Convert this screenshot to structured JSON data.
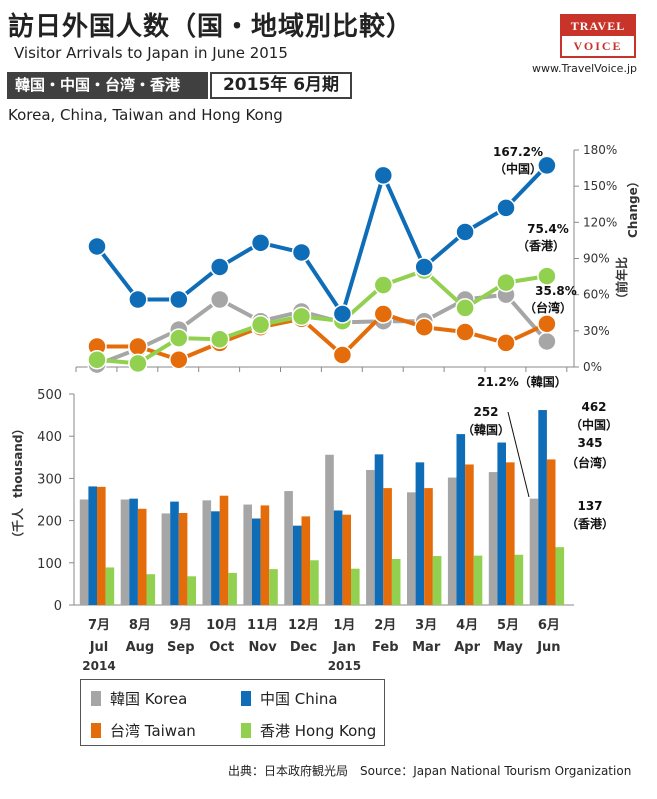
{
  "header": {
    "title": "訪日外国人数（国・地域別比較）",
    "subtitle": "Visitor Arrivals to Japan in June 2015",
    "region_jp": "韓国・中国・台湾・香港",
    "period": "2015年 6月期",
    "region_en": "Korea, China, Taiwan and Hong Kong"
  },
  "logo": {
    "line1": "TRAVEL",
    "line2": "VOICE",
    "url": "www.TravelVoice.jp"
  },
  "colors": {
    "korea": "#a6a6a6",
    "china": "#0f6db8",
    "taiwan": "#e46c0a",
    "hongkong": "#92d050"
  },
  "legend": {
    "korea": "韓国 Korea",
    "china": "中国 China",
    "taiwan": "台湾 Taiwan",
    "hongkong": "香港 Hong Kong"
  },
  "source": "出典：日本政府観光局　Source：Japan  National Tourism  Organization",
  "chart_data": [
    {
      "type": "line",
      "ylabel_jp": "（前年比",
      "ylabel_en": "Change）",
      "yticks": [
        "0%",
        "30%",
        "60%",
        "90%",
        "120%",
        "150%",
        "180%"
      ],
      "ylim": [
        0,
        180
      ],
      "x": [
        "7月 Jul 2014",
        "8月 Aug",
        "9月 Sep",
        "10月 Oct",
        "11月 Nov",
        "12月 Dec",
        "1月 Jan 2015",
        "2月 Feb",
        "3月 Mar",
        "4月 Apr",
        "5月 May",
        "6月 Jun"
      ],
      "series": [
        {
          "name": "韓国 Korea",
          "key": "korea",
          "values": [
            2,
            15,
            31,
            56,
            38,
            46,
            37,
            38,
            38,
            56,
            60,
            21.2
          ]
        },
        {
          "name": "中国 China",
          "key": "china",
          "values": [
            100,
            56,
            56,
            83,
            103,
            95,
            44,
            159,
            83,
            112,
            132,
            167.2
          ]
        },
        {
          "name": "台湾 Taiwan",
          "key": "taiwan",
          "values": [
            17,
            17,
            6,
            20,
            33,
            40,
            10,
            44,
            33,
            29,
            20,
            35.8
          ]
        },
        {
          "name": "香港 Hong Kong",
          "key": "hongkong",
          "values": [
            6,
            3,
            24,
            23,
            35,
            42,
            38,
            68,
            80,
            49,
            70,
            75.4
          ]
        }
      ],
      "annotations": [
        {
          "key": "china",
          "value": "167.2%",
          "label": "（中国）"
        },
        {
          "key": "hongkong",
          "value": "75.4%",
          "label": "（香港）"
        },
        {
          "key": "taiwan",
          "value": "35.8%",
          "label": "（台湾）"
        },
        {
          "key": "korea",
          "value": "21.2%",
          "label": "（韓国）"
        }
      ]
    },
    {
      "type": "bar",
      "ylabel_jp": "（千人",
      "ylabel_en": "thousand）",
      "yticks": [
        "0",
        "100",
        "200",
        "300",
        "400",
        "500"
      ],
      "ylim": [
        0,
        500
      ],
      "categories_jp": [
        "7月",
        "8月",
        "9月",
        "10月",
        "11月",
        "12月",
        "1月",
        "2月",
        "3月",
        "4月",
        "5月",
        "6月"
      ],
      "categories_en": [
        "Jul",
        "Aug",
        "Sep",
        "Oct",
        "Nov",
        "Dec",
        "Jan",
        "Feb",
        "Mar",
        "Apr",
        "May",
        "Jun"
      ],
      "year_labels": [
        {
          "index": 0,
          "text": "2014"
        },
        {
          "index": 6,
          "text": "2015"
        }
      ],
      "series": [
        {
          "name": "韓国 Korea",
          "key": "korea",
          "values": [
            250,
            250,
            217,
            248,
            238,
            270,
            356,
            320,
            267,
            302,
            315,
            252
          ]
        },
        {
          "name": "中国 China",
          "key": "china",
          "values": [
            281,
            252,
            245,
            222,
            205,
            188,
            224,
            357,
            338,
            405,
            385,
            462
          ]
        },
        {
          "name": "台湾 Taiwan",
          "key": "taiwan",
          "values": [
            280,
            228,
            218,
            259,
            236,
            210,
            214,
            277,
            277,
            333,
            338,
            345
          ]
        },
        {
          "name": "香港 Hong Kong",
          "key": "hongkong",
          "values": [
            89,
            73,
            68,
            76,
            85,
            106,
            86,
            109,
            116,
            117,
            119,
            137
          ]
        }
      ],
      "annotations": [
        {
          "key": "korea",
          "value": "252",
          "label": "（韓国）"
        },
        {
          "key": "china",
          "value": "462",
          "label": "（中国）"
        },
        {
          "key": "taiwan",
          "value": "345",
          "label": "（台湾）"
        },
        {
          "key": "hongkong",
          "value": "137",
          "label": "（香港）"
        }
      ]
    }
  ]
}
